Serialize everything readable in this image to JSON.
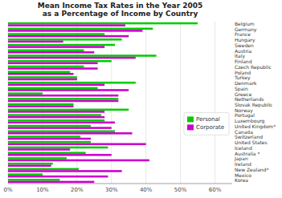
{
  "chart_data": {
    "type": "bar",
    "orientation": "horizontal",
    "title": "Mean Income Tax Rates in the Year 2005\nas a Percentage of Income by Country",
    "categories": [
      "Korea",
      "Mexico",
      "New Zealand*",
      "Ireland",
      "Japan",
      "Australia *",
      "Iceland",
      "United States",
      "Switzerland",
      "Canada",
      "United Kingdom*",
      "Luxembourg",
      "Portugal",
      "Norway",
      "Slovak Republic",
      "Netherlands",
      "Greece",
      "Spain",
      "Denmark",
      "Turkey",
      "Poland",
      "Czech Republic",
      "Finland",
      "Italy",
      "Austria",
      "Sweden",
      "Hungary",
      "France",
      "Germany",
      "Belgium"
    ],
    "series": [
      {
        "name": "Personal",
        "color": "#00cc00",
        "values": [
          15.0,
          10.0,
          20.5,
          13.0,
          17.0,
          22.5,
          29.0,
          24.0,
          21.0,
          31.0,
          24.0,
          28.0,
          27.0,
          35.0,
          19.0,
          32.0,
          10.0,
          26.0,
          37.0,
          20.0,
          18.0,
          22.0,
          30.0,
          43.0,
          22.0,
          31.0,
          33.0,
          28.0,
          42.0,
          55.0
        ]
      },
      {
        "name": "Corporate",
        "color": "#cc00cc",
        "values": [
          25.0,
          29.0,
          33.0,
          12.5,
          41.0,
          30.0,
          18.0,
          40.0,
          24.0,
          36.0,
          30.0,
          31.0,
          28.0,
          28.0,
          19.0,
          32.0,
          32.0,
          35.0,
          28.0,
          20.0,
          19.0,
          26.0,
          26.0,
          37.0,
          25.0,
          28.0,
          16.0,
          35.0,
          39.0,
          34.0
        ]
      }
    ],
    "xlim": [
      0,
      65
    ],
    "xticks": [
      {
        "value": 0,
        "label": "0%"
      },
      {
        "value": 10,
        "label": "10%"
      },
      {
        "value": 20,
        "label": "20%"
      },
      {
        "value": 30,
        "label": "30%"
      },
      {
        "value": 40,
        "label": "40%"
      },
      {
        "value": 50,
        "label": "50%"
      },
      {
        "value": 60,
        "label": "60%"
      }
    ],
    "grid": true,
    "legend": "lower right"
  }
}
